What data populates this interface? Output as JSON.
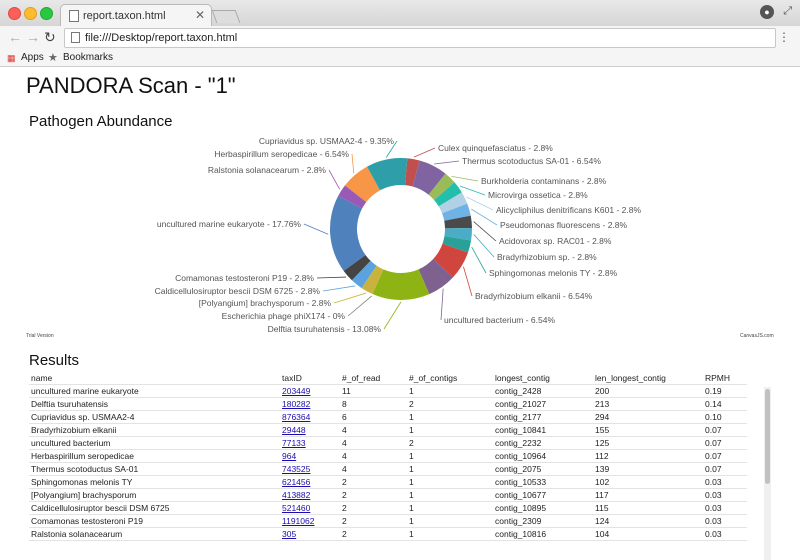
{
  "browser": {
    "tab_title": "report.taxon.html",
    "tab_close": "✕",
    "address": "file:///Desktop/report.taxon.html",
    "bookmarks": [
      "Apps",
      "Bookmarks"
    ],
    "icons": [
      "back-icon",
      "forward-icon",
      "reload-icon",
      "page-icon",
      "menu-icon",
      "profile-icon",
      "apps-icon",
      "star-icon"
    ]
  },
  "page": {
    "title": "PANDORA Scan - \"1\"",
    "chart_heading": "Pathogen Abundance",
    "trial_text": "Trial Version",
    "credit_text": "CanvasJS.com",
    "results_heading": "Results"
  },
  "chart_data": {
    "type": "pie",
    "donut": true,
    "slices": [
      {
        "label": "Culex quinquefasciatus - 2.8%",
        "value": 2.8,
        "color": "#c0504e"
      },
      {
        "label": "Thermus scotoductus SA-01 - 6.54%",
        "value": 6.54,
        "color": "#8064a1"
      },
      {
        "label": "Burkholderia contaminans - 2.8%",
        "value": 2.8,
        "color": "#9bbb58"
      },
      {
        "label": "Microvirga ossetica - 2.8%",
        "value": 2.8,
        "color": "#23bfaa"
      },
      {
        "label": "Alicycliphilus denitrificans K601 - 2.8%",
        "value": 2.8,
        "color": "#b3d1e6"
      },
      {
        "label": "Pseudomonas fluorescens - 2.8%",
        "value": 2.8,
        "color": "#6fb2e6"
      },
      {
        "label": "Acidovorax sp. RAC01 - 2.8%",
        "value": 2.8,
        "color": "#4a4a4a"
      },
      {
        "label": "Bradyrhizobium sp. - 2.8%",
        "value": 2.8,
        "color": "#4aacc5"
      },
      {
        "label": "Sphingomonas melonis TY - 2.8%",
        "value": 2.8,
        "color": "#2aa198"
      },
      {
        "label": "Bradyrhizobium elkanii - 6.54%",
        "value": 6.54,
        "color": "#d0463f"
      },
      {
        "label": "uncultured bacterium - 6.54%",
        "value": 6.54,
        "color": "#7e618f"
      },
      {
        "label": "Delftia tsuruhatensis - 13.08%",
        "value": 13.08,
        "color": "#8db314"
      },
      {
        "label": "Escherichia phage phiX174 - 0%",
        "value": 0.0,
        "color": "#7f7f7f"
      },
      {
        "label": "[Polyangium] brachysporum - 2.8%",
        "value": 2.8,
        "color": "#c9b33d"
      },
      {
        "label": "Caldicellulosiruptor bescii DSM 6725 - 2.8%",
        "value": 2.8,
        "color": "#5ba3e0"
      },
      {
        "label": "Comamonas testosteroni P19 - 2.8%",
        "value": 2.8,
        "color": "#444444"
      },
      {
        "label": "uncultured marine eukaryote - 17.76%",
        "value": 17.76,
        "color": "#4f81bc"
      },
      {
        "label": "Ralstonia solanacearum - 2.8%",
        "value": 2.8,
        "color": "#9b59b6"
      },
      {
        "label": "Herbaspirillum seropedicae - 6.54%",
        "value": 6.54,
        "color": "#f79646"
      },
      {
        "label": "Cupriavidus sp. USMAA2-4 - 9.35%",
        "value": 9.35,
        "color": "#2e9ea8"
      }
    ]
  },
  "table": {
    "headers": [
      "name",
      "taxID",
      "#_of_read",
      "#_of_contigs",
      "longest_contig",
      "len_longest_contig",
      "RPMH"
    ],
    "rows": [
      [
        "uncultured marine eukaryote",
        "203449",
        "11",
        "1",
        "contig_2428",
        "200",
        "0.19"
      ],
      [
        "Delftia tsuruhatensis",
        "180282",
        "8",
        "2",
        "contig_21027",
        "213",
        "0.14"
      ],
      [
        "Cupriavidus sp. USMAA2-4",
        "876364",
        "6",
        "1",
        "contig_2177",
        "294",
        "0.10"
      ],
      [
        "Bradyrhizobium elkanii",
        "29448",
        "4",
        "1",
        "contig_10841",
        "155",
        "0.07"
      ],
      [
        "uncultured bacterium",
        "77133",
        "4",
        "2",
        "contig_2232",
        "125",
        "0.07"
      ],
      [
        "Herbaspirillum seropedicae",
        "964",
        "4",
        "1",
        "contig_10964",
        "112",
        "0.07"
      ],
      [
        "Thermus scotoductus SA-01",
        "743525",
        "4",
        "1",
        "contig_2075",
        "139",
        "0.07"
      ],
      [
        "Sphingomonas melonis TY",
        "621456",
        "2",
        "1",
        "contig_10533",
        "102",
        "0.03"
      ],
      [
        "[Polyangium] brachysporum",
        "413882",
        "2",
        "1",
        "contig_10677",
        "117",
        "0.03"
      ],
      [
        "Caldicellulosiruptor bescii DSM 6725",
        "521460",
        "2",
        "1",
        "contig_10895",
        "115",
        "0.03"
      ],
      [
        "Comamonas testosteroni P19",
        "1191062",
        "2",
        "1",
        "contig_2309",
        "124",
        "0.03"
      ],
      [
        "Ralstonia solanacearum",
        "305",
        "2",
        "1",
        "contig_10816",
        "104",
        "0.03"
      ]
    ]
  }
}
